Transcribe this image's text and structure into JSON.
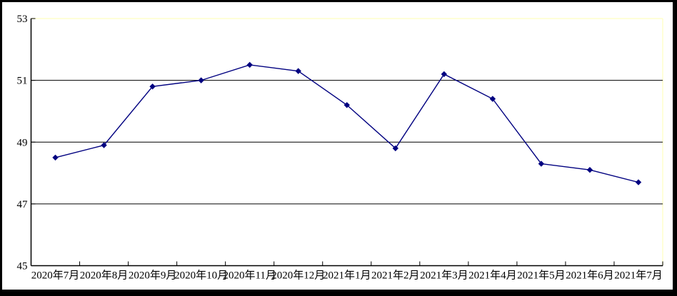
{
  "chart_data": {
    "type": "line",
    "title": "",
    "xlabel": "",
    "ylabel": "",
    "categories": [
      "2020年7月",
      "2020年8月",
      "2020年9月",
      "2020年10月",
      "2020年11月",
      "2020年12月",
      "2021年1月",
      "2021年2月",
      "2021年3月",
      "2021年4月",
      "2021年5月",
      "2021年6月",
      "2021年7月"
    ],
    "values": [
      48.5,
      48.9,
      50.8,
      51.0,
      51.5,
      51.3,
      50.2,
      48.8,
      51.2,
      50.4,
      48.3,
      48.1,
      47.7
    ],
    "ylim": [
      45,
      53
    ],
    "y_tick_values": [
      45,
      47,
      49,
      51,
      53
    ],
    "y_tick_labels": [
      "45",
      "47",
      "49",
      "51",
      "53"
    ],
    "gridline_values": [
      47,
      49,
      51
    ],
    "grid": true,
    "legend_position": "none",
    "marker": "diamond",
    "colors": {
      "line": "#000080",
      "marker": "#000080",
      "gridline": "#000000",
      "axis": "#000000",
      "plot_border": "#ffffcc",
      "frame": "#000000",
      "background": "#ffffff"
    }
  }
}
